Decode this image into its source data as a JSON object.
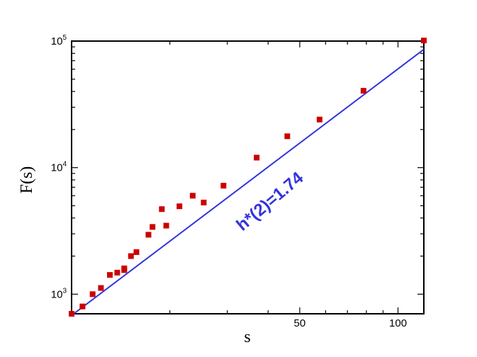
{
  "chart_data": {
    "type": "scatter",
    "xlabel": "s",
    "ylabel": "F(s)",
    "xscale": "log",
    "yscale": "log",
    "xlim": [
      10,
      120
    ],
    "ylim": [
      700,
      100000
    ],
    "x_tick_labels": [
      {
        "value": 50,
        "label": "50"
      },
      {
        "value": 100,
        "label": "100"
      }
    ],
    "y_tick_labels": [
      {
        "value": 1000,
        "base": "10",
        "exp": "3"
      },
      {
        "value": 10000,
        "base": "10",
        "exp": "4"
      },
      {
        "value": 100000,
        "base": "10",
        "exp": "5"
      }
    ],
    "series": [
      {
        "kind": "points",
        "marker": "square",
        "color": "#cc0000",
        "points": [
          [
            10,
            700
          ],
          [
            10.8,
            800
          ],
          [
            11.6,
            1000
          ],
          [
            12.3,
            1120
          ],
          [
            13.1,
            1420
          ],
          [
            13.8,
            1480
          ],
          [
            14.5,
            1550
          ],
          [
            14.5,
            1600
          ],
          [
            15.2,
            2000
          ],
          [
            15.8,
            2150
          ],
          [
            17.2,
            2950
          ],
          [
            17.7,
            3400
          ],
          [
            18.9,
            4700
          ],
          [
            19.5,
            3480
          ],
          [
            21.4,
            4950
          ],
          [
            23.5,
            6000
          ],
          [
            25.4,
            5300
          ],
          [
            29.2,
            7200
          ],
          [
            36.9,
            12000
          ],
          [
            45.8,
            17700
          ],
          [
            57.5,
            24000
          ],
          [
            78.4,
            40500
          ],
          [
            120,
            101000
          ]
        ]
      },
      {
        "kind": "fit-line",
        "color": "#3333dd",
        "points": [
          [
            10,
            680
          ],
          [
            120,
            86000
          ]
        ]
      }
    ],
    "annotations": [
      {
        "text": "h*(2)=1.74",
        "color": "#3333dd"
      }
    ]
  }
}
